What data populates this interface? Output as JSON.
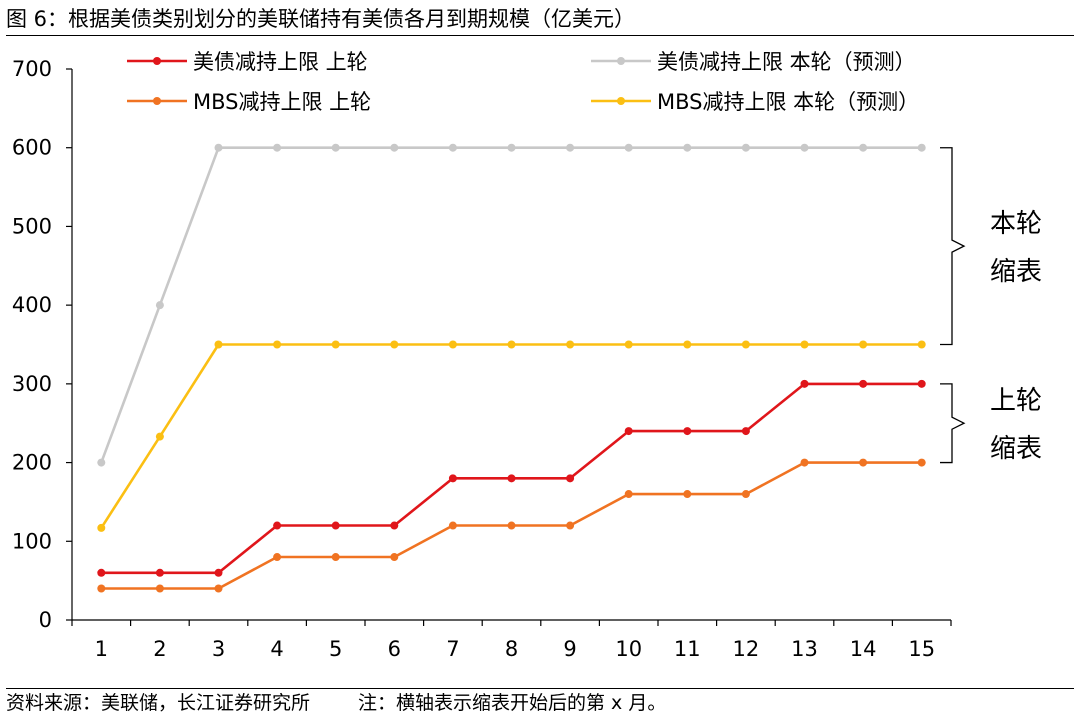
{
  "title": "图 6：根据美债类别划分的美联储持有美债各月到期规模（亿美元）",
  "footer": {
    "source": "资料来源：美联储，长江证券研究所",
    "note": "注：横轴表示缩表开始后的第 x 月。"
  },
  "chart_data": {
    "type": "line",
    "x": [
      1,
      2,
      3,
      4,
      5,
      6,
      7,
      8,
      9,
      10,
      11,
      12,
      13,
      14,
      15
    ],
    "ylim": [
      0,
      700
    ],
    "yticks": [
      0,
      100,
      200,
      300,
      400,
      500,
      600,
      700
    ],
    "grid": false,
    "legend": "top",
    "series": [
      {
        "name": "美债减持上限 上轮",
        "color": "#e0161b",
        "values": [
          60,
          60,
          60,
          120,
          120,
          120,
          180,
          180,
          180,
          240,
          240,
          240,
          300,
          300,
          300
        ]
      },
      {
        "name": "美债减持上限 本轮（预测）",
        "color": "#c8c8c8",
        "values": [
          200,
          400,
          600,
          600,
          600,
          600,
          600,
          600,
          600,
          600,
          600,
          600,
          600,
          600,
          600
        ]
      },
      {
        "name": "MBS减持上限 上轮",
        "color": "#f07322",
        "values": [
          40,
          40,
          40,
          80,
          80,
          80,
          120,
          120,
          120,
          160,
          160,
          160,
          200,
          200,
          200
        ]
      },
      {
        "name": "MBS减持上限 本轮（预测）",
        "color": "#fbbf13",
        "values": [
          117,
          233,
          350,
          350,
          350,
          350,
          350,
          350,
          350,
          350,
          350,
          350,
          350,
          350,
          350
        ]
      }
    ],
    "annotations": [
      {
        "text_line1": "本轮",
        "text_line2": "缩表",
        "range": [
          350,
          600
        ]
      },
      {
        "text_line1": "上轮",
        "text_line2": "缩表",
        "range": [
          200,
          300
        ]
      }
    ]
  }
}
